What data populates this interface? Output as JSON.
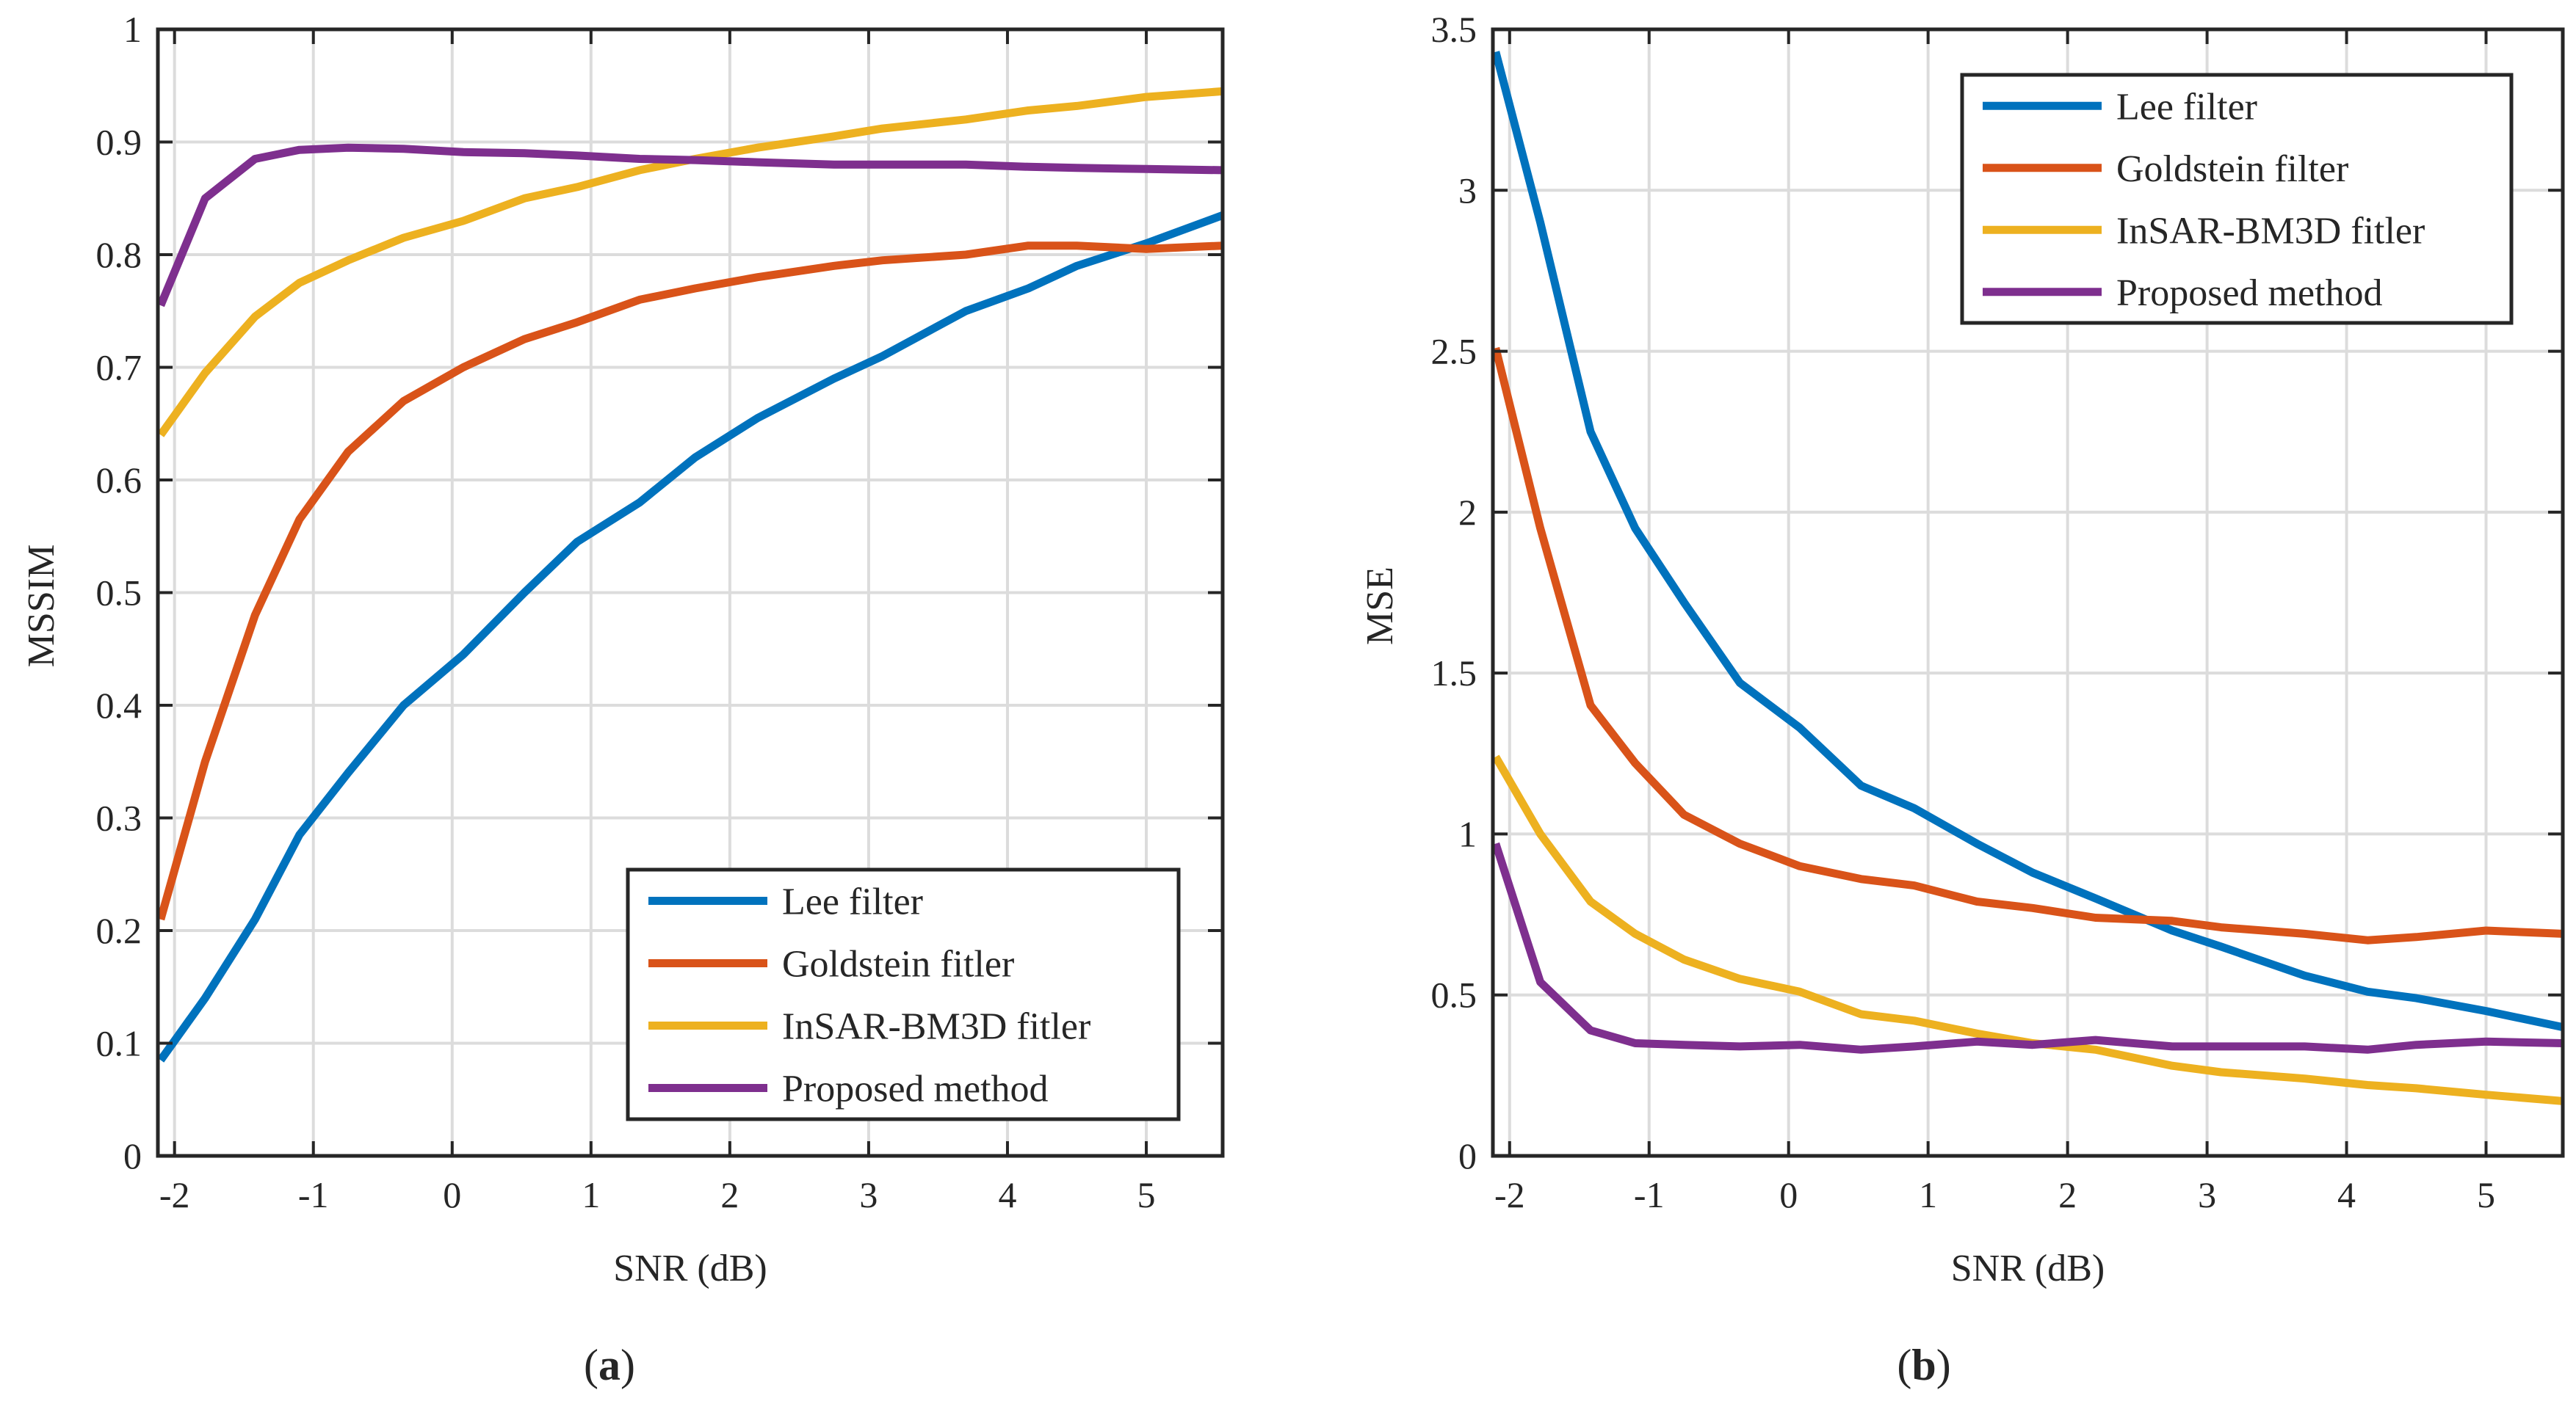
{
  "chart_data": [
    {
      "type": "line",
      "panel_label": "(a)",
      "caption_letter": "a",
      "xlabel": "SNR (dB)",
      "ylabel": "MSSIM",
      "xlim": [
        -2.12,
        5.55
      ],
      "ylim": [
        0,
        1
      ],
      "xticks": [
        -2,
        -1,
        0,
        1,
        2,
        3,
        4,
        5
      ],
      "xtick_labels": [
        "-2",
        "-1",
        "0",
        "1",
        "2",
        "3",
        "4",
        "5"
      ],
      "yticks": [
        0,
        0.1,
        0.2,
        0.3,
        0.4,
        0.5,
        0.6,
        0.7,
        0.8,
        0.9,
        1
      ],
      "ytick_labels": [
        "0",
        "0.1",
        "0.2",
        "0.3",
        "0.4",
        "0.5",
        "0.6",
        "0.7",
        "0.8",
        "0.9",
        "1"
      ],
      "grid": true,
      "legend_position": "bottom-right",
      "x": [
        -2.1,
        -1.78,
        -1.42,
        -1.1,
        -0.75,
        -0.35,
        0.08,
        0.52,
        0.9,
        1.35,
        1.75,
        2.2,
        2.75,
        3.1,
        3.7,
        4.15,
        4.5,
        5.0,
        5.55
      ],
      "series": [
        {
          "name": "Lee filter",
          "color": "#0072BD",
          "values": [
            0.085,
            0.14,
            0.21,
            0.285,
            0.34,
            0.4,
            0.445,
            0.5,
            0.545,
            0.58,
            0.62,
            0.655,
            0.69,
            0.71,
            0.75,
            0.77,
            0.79,
            0.81,
            0.835
          ]
        },
        {
          "name": "Goldstein fitler",
          "color": "#D95319",
          "values": [
            0.21,
            0.35,
            0.48,
            0.565,
            0.625,
            0.67,
            0.7,
            0.725,
            0.74,
            0.76,
            0.77,
            0.78,
            0.79,
            0.795,
            0.8,
            0.808,
            0.808,
            0.805,
            0.808
          ]
        },
        {
          "name": "InSAR-BM3D fitler",
          "color": "#EDB120",
          "values": [
            0.64,
            0.695,
            0.745,
            0.775,
            0.795,
            0.815,
            0.83,
            0.85,
            0.86,
            0.875,
            0.885,
            0.895,
            0.905,
            0.912,
            0.92,
            0.928,
            0.932,
            0.94,
            0.945
          ]
        },
        {
          "name": "Proposed method",
          "color": "#7E2F8E",
          "values": [
            0.755,
            0.85,
            0.885,
            0.893,
            0.895,
            0.894,
            0.891,
            0.89,
            0.888,
            0.885,
            0.884,
            0.882,
            0.88,
            0.88,
            0.88,
            0.878,
            0.877,
            0.876,
            0.875
          ]
        }
      ]
    },
    {
      "type": "line",
      "panel_label": "(b)",
      "caption_letter": "b",
      "xlabel": "SNR (dB)",
      "ylabel": "MSE",
      "xlim": [
        -2.12,
        5.55
      ],
      "ylim": [
        0,
        3.5
      ],
      "xticks": [
        -2,
        -1,
        0,
        1,
        2,
        3,
        4,
        5
      ],
      "xtick_labels": [
        "-2",
        "-1",
        "0",
        "1",
        "2",
        "3",
        "4",
        "5"
      ],
      "yticks": [
        0,
        0.5,
        1,
        1.5,
        2,
        2.5,
        3,
        3.5
      ],
      "ytick_labels": [
        "0",
        "0.5",
        "1",
        "1.5",
        "2",
        "2.5",
        "3",
        "3.5"
      ],
      "grid": true,
      "legend_position": "top-right",
      "x": [
        -2.1,
        -1.78,
        -1.42,
        -1.1,
        -0.75,
        -0.35,
        0.08,
        0.52,
        0.9,
        1.35,
        1.75,
        2.2,
        2.75,
        3.1,
        3.7,
        4.15,
        4.5,
        5.0,
        5.55
      ],
      "series": [
        {
          "name": "Lee filter",
          "color": "#0072BD",
          "values": [
            3.43,
            2.9,
            2.25,
            1.95,
            1.72,
            1.47,
            1.33,
            1.15,
            1.08,
            0.97,
            0.88,
            0.8,
            0.7,
            0.65,
            0.56,
            0.51,
            0.49,
            0.45,
            0.4
          ]
        },
        {
          "name": "Goldstein filter",
          "color": "#D95319",
          "values": [
            2.51,
            1.95,
            1.4,
            1.22,
            1.06,
            0.97,
            0.9,
            0.86,
            0.84,
            0.79,
            0.77,
            0.74,
            0.73,
            0.71,
            0.69,
            0.67,
            0.68,
            0.7,
            0.69
          ]
        },
        {
          "name": "InSAR-BM3D fitler",
          "color": "#EDB120",
          "values": [
            1.24,
            1.0,
            0.79,
            0.69,
            0.61,
            0.55,
            0.51,
            0.44,
            0.42,
            0.38,
            0.35,
            0.33,
            0.28,
            0.26,
            0.24,
            0.22,
            0.21,
            0.19,
            0.17
          ]
        },
        {
          "name": "Proposed method",
          "color": "#7E2F8E",
          "values": [
            0.97,
            0.54,
            0.39,
            0.35,
            0.345,
            0.34,
            0.345,
            0.33,
            0.34,
            0.355,
            0.345,
            0.36,
            0.34,
            0.34,
            0.34,
            0.33,
            0.345,
            0.355,
            0.35
          ]
        }
      ]
    }
  ]
}
